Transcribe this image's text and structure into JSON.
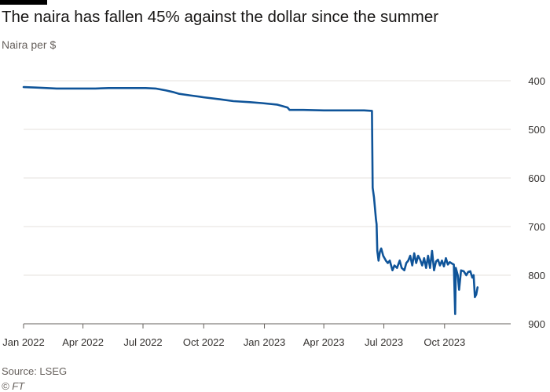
{
  "header": {
    "title": "The naira has fallen 45% against the dollar since the summer",
    "subtitle": "Naira per $"
  },
  "footer": {
    "source": "Source: LSEG",
    "copyright": "© FT"
  },
  "colors": {
    "line": "#0f5499",
    "grid": "#e6e1dc",
    "axis": "#66605c",
    "brand_bar": "#000000"
  },
  "chart_data": {
    "type": "line",
    "title": "The naira has fallen 45% against the dollar since the summer",
    "ylabel": "Naira per $",
    "xlabel": "",
    "y_inverted": true,
    "ylim": [
      400,
      900
    ],
    "yticks": [
      400,
      500,
      600,
      700,
      800,
      900
    ],
    "xlim": [
      "2022-01-01",
      "2023-12-20"
    ],
    "xticks": [
      {
        "date": "2022-01-01",
        "label": "Jan 2022"
      },
      {
        "date": "2022-04-01",
        "label": "Apr 2022"
      },
      {
        "date": "2022-07-01",
        "label": "Jul 2022"
      },
      {
        "date": "2022-10-01",
        "label": "Oct 2022"
      },
      {
        "date": "2023-01-01",
        "label": "Jan 2023"
      },
      {
        "date": "2023-04-01",
        "label": "Apr 2023"
      },
      {
        "date": "2023-07-01",
        "label": "Jul 2023"
      },
      {
        "date": "2023-10-01",
        "label": "Oct 2023"
      }
    ],
    "grid": true,
    "y_axis_side": "right",
    "series": [
      {
        "points": [
          [
            "2022-01-01",
            413
          ],
          [
            "2022-01-20",
            414
          ],
          [
            "2022-02-05",
            415
          ],
          [
            "2022-02-20",
            416
          ],
          [
            "2022-03-10",
            416
          ],
          [
            "2022-04-01",
            416
          ],
          [
            "2022-04-20",
            416
          ],
          [
            "2022-05-10",
            415
          ],
          [
            "2022-06-01",
            415
          ],
          [
            "2022-06-20",
            415
          ],
          [
            "2022-07-05",
            415
          ],
          [
            "2022-07-20",
            416
          ],
          [
            "2022-08-05",
            420
          ],
          [
            "2022-08-15",
            423
          ],
          [
            "2022-08-25",
            427
          ],
          [
            "2022-09-10",
            430
          ],
          [
            "2022-10-01",
            434
          ],
          [
            "2022-10-25",
            438
          ],
          [
            "2022-11-15",
            442
          ],
          [
            "2022-12-10",
            444
          ],
          [
            "2022-12-28",
            446
          ],
          [
            "2023-01-20",
            449
          ],
          [
            "2023-02-05",
            455
          ],
          [
            "2023-02-08",
            460
          ],
          [
            "2023-03-01",
            460
          ],
          [
            "2023-04-01",
            461
          ],
          [
            "2023-05-01",
            461
          ],
          [
            "2023-06-01",
            461
          ],
          [
            "2023-06-13",
            462
          ],
          [
            "2023-06-14",
            620
          ],
          [
            "2023-06-16",
            640
          ],
          [
            "2023-06-19",
            685
          ],
          [
            "2023-06-20",
            695
          ],
          [
            "2023-06-21",
            750
          ],
          [
            "2023-06-23",
            770
          ],
          [
            "2023-06-25",
            752
          ],
          [
            "2023-06-27",
            745
          ],
          [
            "2023-06-30",
            760
          ],
          [
            "2023-07-04",
            770
          ],
          [
            "2023-07-07",
            775
          ],
          [
            "2023-07-10",
            770
          ],
          [
            "2023-07-14",
            790
          ],
          [
            "2023-07-17",
            780
          ],
          [
            "2023-07-21",
            785
          ],
          [
            "2023-07-25",
            770
          ],
          [
            "2023-07-28",
            785
          ],
          [
            "2023-08-01",
            790
          ],
          [
            "2023-08-04",
            775
          ],
          [
            "2023-08-07",
            770
          ],
          [
            "2023-08-10",
            760
          ],
          [
            "2023-08-13",
            780
          ],
          [
            "2023-08-16",
            755
          ],
          [
            "2023-08-19",
            775
          ],
          [
            "2023-08-22",
            760
          ],
          [
            "2023-08-25",
            768
          ],
          [
            "2023-08-28",
            780
          ],
          [
            "2023-08-31",
            765
          ],
          [
            "2023-09-03",
            785
          ],
          [
            "2023-09-06",
            760
          ],
          [
            "2023-09-09",
            785
          ],
          [
            "2023-09-12",
            750
          ],
          [
            "2023-09-15",
            790
          ],
          [
            "2023-09-18",
            772
          ],
          [
            "2023-09-21",
            768
          ],
          [
            "2023-09-24",
            780
          ],
          [
            "2023-09-27",
            770
          ],
          [
            "2023-09-30",
            782
          ],
          [
            "2023-10-03",
            765
          ],
          [
            "2023-10-06",
            778
          ],
          [
            "2023-10-09",
            773
          ],
          [
            "2023-10-12",
            776
          ],
          [
            "2023-10-15",
            778
          ],
          [
            "2023-10-17",
            880
          ],
          [
            "2023-10-18",
            785
          ],
          [
            "2023-10-21",
            800
          ],
          [
            "2023-10-23",
            830
          ],
          [
            "2023-10-26",
            790
          ],
          [
            "2023-10-30",
            792
          ],
          [
            "2023-11-03",
            800
          ],
          [
            "2023-11-06",
            793
          ],
          [
            "2023-11-09",
            792
          ],
          [
            "2023-11-12",
            805
          ],
          [
            "2023-11-14",
            800
          ],
          [
            "2023-11-16",
            845
          ],
          [
            "2023-11-18",
            840
          ],
          [
            "2023-11-20",
            825
          ]
        ]
      }
    ]
  }
}
